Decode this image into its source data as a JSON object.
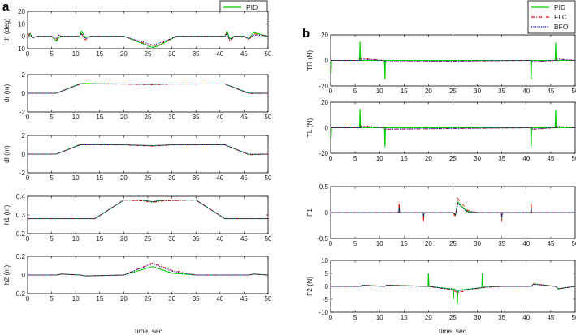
{
  "figure": {
    "panel_a_label": "a",
    "panel_b_label": "b",
    "xlabel_a": "time, sec",
    "xlabel_b": "time, sec"
  },
  "legend": [
    {
      "name": "PID",
      "color": "#00cc00",
      "dash": "solid"
    },
    {
      "name": "FLC",
      "color": "#ee0000",
      "dash": "dashdot"
    },
    {
      "name": "BFO",
      "color": "#0000cc",
      "dash": "dotted"
    }
  ],
  "chart_data": [
    {
      "id": "th",
      "panel": "a",
      "type": "line",
      "ylabel": "th (deg)",
      "xlim": [
        0,
        50
      ],
      "ylim": [
        -10,
        20
      ],
      "yticks": [
        -10,
        0,
        10,
        20
      ],
      "xticks": [
        0,
        5,
        10,
        15,
        20,
        25,
        30,
        35,
        40,
        45,
        50
      ],
      "series": [
        {
          "name": "PID",
          "x": [
            0,
            0.5,
            1,
            2,
            5,
            6,
            6.5,
            7,
            10,
            10.8,
            11.2,
            12,
            13,
            20,
            26,
            27,
            31,
            40,
            41,
            41.5,
            42,
            43,
            45,
            46,
            47,
            50
          ],
          "y": [
            0,
            2,
            -1,
            0,
            0,
            -4,
            -1,
            0,
            0,
            0,
            4,
            -1,
            0,
            0,
            -9,
            -8,
            0,
            0,
            0,
            4,
            -2,
            0,
            0,
            -2,
            3,
            0
          ]
        },
        {
          "name": "FLC",
          "x": [
            0,
            0.5,
            1,
            2,
            5,
            6,
            6.5,
            7,
            10,
            10.8,
            11.2,
            12,
            13,
            20,
            26,
            27,
            31,
            40,
            41,
            41.5,
            42,
            43,
            45,
            46,
            47,
            50
          ],
          "y": [
            0,
            3,
            -2,
            0,
            0,
            -3,
            1,
            0,
            0,
            0,
            2,
            -3,
            0,
            0,
            -8,
            -7,
            0,
            0,
            0,
            3,
            -4,
            0,
            0,
            -3,
            2,
            0
          ]
        },
        {
          "name": "BFO",
          "x": [
            0,
            0.5,
            1,
            2,
            5,
            6,
            6.5,
            7,
            10,
            10.8,
            11.2,
            12,
            13,
            20,
            26,
            27,
            31,
            40,
            41,
            41.5,
            42,
            43,
            45,
            46,
            47,
            50
          ],
          "y": [
            0,
            1,
            -1,
            0,
            0,
            -2,
            1,
            0,
            0,
            0,
            2,
            -2,
            0,
            0,
            -7,
            -6,
            0,
            0,
            0,
            2,
            -3,
            0,
            0,
            -2,
            1,
            0
          ]
        }
      ]
    },
    {
      "id": "dr",
      "panel": "a",
      "type": "line",
      "ylabel": "dr (m)",
      "xlim": [
        0,
        50
      ],
      "ylim": [
        -2,
        2
      ],
      "yticks": [
        -2,
        0,
        2
      ],
      "xticks": [
        0,
        5,
        10,
        15,
        20,
        25,
        30,
        35,
        40,
        45,
        50
      ],
      "series": [
        {
          "name": "PID",
          "x": [
            0,
            6,
            11,
            20,
            26,
            30,
            41,
            46,
            50
          ],
          "y": [
            0,
            0,
            1.05,
            1.0,
            0.97,
            1.0,
            1.0,
            0.02,
            0
          ]
        },
        {
          "name": "FLC",
          "x": [
            0,
            6,
            11,
            20,
            26,
            30,
            41,
            46,
            50
          ],
          "y": [
            0,
            0,
            1.0,
            0.98,
            0.92,
            0.98,
            1.0,
            -0.04,
            0
          ]
        },
        {
          "name": "BFO",
          "x": [
            0,
            6,
            11,
            20,
            26,
            30,
            41,
            46,
            50
          ],
          "y": [
            0,
            0,
            1.0,
            1.0,
            0.95,
            1.0,
            1.0,
            0,
            0
          ]
        }
      ]
    },
    {
      "id": "dl",
      "panel": "a",
      "type": "line",
      "ylabel": "dl (m)",
      "xlim": [
        0,
        50
      ],
      "ylim": [
        -2,
        2
      ],
      "yticks": [
        -2,
        0,
        2
      ],
      "xticks": [
        0,
        5,
        10,
        15,
        20,
        25,
        30,
        35,
        40,
        45,
        50
      ],
      "series": [
        {
          "name": "PID",
          "x": [
            0,
            6,
            11,
            20,
            26,
            30,
            41,
            46,
            50
          ],
          "y": [
            0,
            0,
            1.05,
            1.0,
            0.9,
            1.0,
            1.0,
            -0.05,
            0
          ]
        },
        {
          "name": "FLC",
          "x": [
            0,
            6,
            11,
            20,
            26,
            30,
            41,
            46,
            50
          ],
          "y": [
            0,
            0,
            1.0,
            0.98,
            0.85,
            0.98,
            1.0,
            -0.08,
            0
          ]
        },
        {
          "name": "BFO",
          "x": [
            0,
            6,
            11,
            20,
            26,
            30,
            41,
            46,
            50
          ],
          "y": [
            0,
            0,
            1.0,
            1.0,
            0.92,
            1.0,
            1.0,
            0,
            0
          ]
        }
      ]
    },
    {
      "id": "h1",
      "panel": "a",
      "type": "line",
      "ylabel": "h1 (m)",
      "xlim": [
        0,
        50
      ],
      "ylim": [
        0.2,
        0.4
      ],
      "yticks": [
        0.2,
        0.3,
        0.4
      ],
      "xticks": [
        0,
        5,
        10,
        15,
        20,
        25,
        30,
        35,
        40,
        45,
        50
      ],
      "series": [
        {
          "name": "PID",
          "x": [
            0,
            14,
            20,
            24,
            26,
            28,
            35,
            41,
            50
          ],
          "y": [
            0.28,
            0.28,
            0.38,
            0.38,
            0.37,
            0.38,
            0.38,
            0.28,
            0.28
          ]
        },
        {
          "name": "FLC",
          "x": [
            0,
            14,
            20,
            24,
            26,
            28,
            35,
            41,
            50
          ],
          "y": [
            0.28,
            0.28,
            0.38,
            0.375,
            0.368,
            0.375,
            0.38,
            0.28,
            0.28
          ]
        },
        {
          "name": "BFO",
          "x": [
            0,
            14,
            20,
            24,
            26,
            28,
            35,
            41,
            50
          ],
          "y": [
            0.28,
            0.28,
            0.38,
            0.378,
            0.372,
            0.378,
            0.38,
            0.28,
            0.28
          ]
        }
      ]
    },
    {
      "id": "h2",
      "panel": "a",
      "type": "line",
      "ylabel": "h2 (m)",
      "xlim": [
        0,
        50
      ],
      "ylim": [
        -0.2,
        0.2
      ],
      "yticks": [
        -0.2,
        0,
        0.2
      ],
      "xticks": [
        0,
        5,
        10,
        15,
        20,
        25,
        30,
        35,
        40,
        45,
        50
      ],
      "series": [
        {
          "name": "PID",
          "x": [
            0,
            6,
            7,
            11,
            12,
            20,
            26,
            30,
            35,
            46,
            47,
            50
          ],
          "y": [
            0,
            0,
            0.01,
            0,
            -0.01,
            0,
            0.09,
            0.02,
            0,
            0,
            0.01,
            0
          ]
        },
        {
          "name": "FLC",
          "x": [
            0,
            6,
            7,
            11,
            12,
            20,
            26,
            30,
            35,
            46,
            47,
            50
          ],
          "y": [
            0,
            0,
            0.01,
            0,
            -0.01,
            0,
            0.13,
            0.05,
            0,
            0,
            0.01,
            0
          ]
        },
        {
          "name": "BFO",
          "x": [
            0,
            6,
            7,
            11,
            12,
            20,
            26,
            30,
            35,
            46,
            47,
            50
          ],
          "y": [
            0,
            0,
            0.01,
            0,
            -0.01,
            0,
            0.12,
            0.04,
            0,
            0,
            0.01,
            0
          ]
        }
      ]
    },
    {
      "id": "TR",
      "panel": "b",
      "type": "line",
      "ylabel": "TR (N)",
      "xlim": [
        0,
        50
      ],
      "ylim": [
        -20,
        20
      ],
      "yticks": [
        -20,
        0,
        20
      ],
      "xticks": [
        0,
        5,
        10,
        15,
        20,
        25,
        30,
        35,
        40,
        45,
        50
      ],
      "series": [
        {
          "name": "PID",
          "x": [
            0,
            0.1,
            0.2,
            5.9,
            6,
            6.1,
            11,
            11.1,
            11.2,
            40.9,
            41,
            41.1,
            45.9,
            46,
            46.1,
            50
          ],
          "y": [
            0,
            -10,
            0,
            0,
            15,
            0,
            0,
            -15,
            0,
            0,
            -15,
            0,
            0,
            14,
            0,
            0
          ]
        },
        {
          "name": "FLC",
          "x": [
            0,
            6,
            6.3,
            11,
            11.3,
            41,
            41.3,
            46,
            46.3,
            50
          ],
          "y": [
            0,
            0,
            1.5,
            0,
            -1.2,
            0,
            -1.2,
            0,
            1.2,
            0
          ]
        },
        {
          "name": "BFO",
          "x": [
            0,
            6,
            6.3,
            11,
            11.3,
            41,
            41.3,
            46,
            46.3,
            50
          ],
          "y": [
            0,
            0,
            1,
            0,
            -1,
            0,
            -1,
            0,
            1,
            0
          ]
        }
      ]
    },
    {
      "id": "TL",
      "panel": "b",
      "type": "line",
      "ylabel": "TL (N)",
      "xlim": [
        0,
        50
      ],
      "ylim": [
        -20,
        20
      ],
      "yticks": [
        -20,
        0,
        20
      ],
      "xticks": [
        0,
        5,
        10,
        15,
        20,
        25,
        30,
        35,
        40,
        45,
        50
      ],
      "series": [
        {
          "name": "PID",
          "x": [
            0,
            0.1,
            0.2,
            5.9,
            6,
            6.1,
            11,
            11.1,
            11.2,
            40.9,
            41,
            41.1,
            45.9,
            46,
            46.1,
            50
          ],
          "y": [
            0,
            -8,
            0,
            0,
            15,
            0,
            0,
            -15,
            0,
            0,
            -15,
            0,
            0,
            14,
            0,
            0
          ]
        },
        {
          "name": "FLC",
          "x": [
            0,
            6,
            6.3,
            11,
            11.3,
            41,
            41.3,
            46,
            46.3,
            50
          ],
          "y": [
            0,
            0,
            1.5,
            0,
            -1.2,
            0,
            -1.2,
            0,
            1.2,
            0
          ]
        },
        {
          "name": "BFO",
          "x": [
            0,
            6,
            6.3,
            11,
            11.3,
            41,
            41.3,
            46,
            46.3,
            50
          ],
          "y": [
            0,
            0,
            1,
            0,
            -1,
            0,
            -1,
            0,
            1,
            0
          ]
        }
      ]
    },
    {
      "id": "F1",
      "panel": "b",
      "type": "line",
      "ylabel": "F1",
      "xlim": [
        0,
        50
      ],
      "ylim": [
        -0.5,
        0.5
      ],
      "yticks": [
        -0.5,
        0,
        0.5
      ],
      "xticks": [
        0,
        5,
        10,
        15,
        20,
        25,
        30,
        35,
        40,
        45,
        50
      ],
      "series": [
        {
          "name": "PID",
          "x": [
            0,
            13.9,
            14,
            14.1,
            18.9,
            19,
            19.1,
            25,
            25.5,
            26,
            27,
            28,
            30,
            34.9,
            35,
            35.1,
            40.9,
            41,
            41.1,
            50
          ],
          "y": [
            0,
            0,
            0.15,
            0,
            0,
            -0.1,
            0,
            0,
            -0.05,
            0.2,
            0.1,
            0.02,
            0,
            0,
            -0.12,
            0,
            0,
            0.12,
            0,
            0
          ]
        },
        {
          "name": "FLC",
          "x": [
            0,
            13.9,
            14,
            14.1,
            18.9,
            19,
            19.1,
            25,
            25.5,
            26,
            27,
            28,
            30,
            34.9,
            35,
            35.1,
            40.9,
            41,
            41.1,
            50
          ],
          "y": [
            0,
            0,
            0.2,
            0,
            0,
            -0.18,
            0,
            0,
            -0.08,
            0.27,
            0.15,
            0.04,
            0,
            0,
            -0.18,
            0,
            0,
            0.2,
            0,
            0
          ]
        },
        {
          "name": "BFO",
          "x": [
            0,
            13.9,
            14,
            14.1,
            18.9,
            19,
            19.1,
            25,
            25.5,
            26,
            27,
            28,
            30,
            34.9,
            35,
            35.1,
            40.9,
            41,
            41.1,
            50
          ],
          "y": [
            0,
            0,
            0.1,
            0,
            0,
            -0.08,
            0,
            0,
            -0.04,
            0.18,
            0.08,
            0.01,
            0,
            0,
            -0.1,
            0,
            0,
            0.1,
            0,
            0
          ]
        }
      ]
    },
    {
      "id": "F2",
      "panel": "b",
      "type": "line",
      "ylabel": "F2 (N)",
      "xlim": [
        0,
        50
      ],
      "ylim": [
        -10,
        10
      ],
      "yticks": [
        -10,
        -5,
        0,
        5,
        10
      ],
      "xticks": [
        0,
        5,
        10,
        15,
        20,
        25,
        30,
        35,
        40,
        45,
        50
      ],
      "series": [
        {
          "name": "PID",
          "x": [
            0,
            6,
            6.5,
            11,
            11.5,
            19.9,
            20,
            20.1,
            25,
            25.1,
            25.2,
            25.8,
            25.9,
            26,
            30.9,
            31,
            31.1,
            41,
            41.5,
            46,
            46.5,
            50
          ],
          "y": [
            0,
            0,
            0.5,
            0,
            0.5,
            0,
            5,
            0,
            -1,
            -5,
            -1,
            -1.5,
            -7,
            -1.5,
            -0.5,
            5,
            0,
            0,
            1,
            0,
            -1,
            0
          ]
        },
        {
          "name": "FLC",
          "x": [
            0,
            6,
            6.5,
            11,
            11.5,
            20,
            25,
            26,
            28,
            31,
            35,
            41,
            41.5,
            46,
            46.5,
            50
          ],
          "y": [
            0,
            0,
            0.5,
            0,
            0.5,
            0,
            -1.5,
            -2.5,
            -1.5,
            -0.5,
            0,
            0,
            1,
            0,
            -1,
            0
          ]
        },
        {
          "name": "BFO",
          "x": [
            0,
            6,
            6.5,
            11,
            11.5,
            20,
            25,
            26,
            28,
            31,
            35,
            41,
            41.5,
            46,
            46.5,
            50
          ],
          "y": [
            0,
            0,
            0.4,
            0,
            0.4,
            0,
            -1.2,
            -2,
            -1.2,
            -0.4,
            0,
            0,
            0.8,
            0,
            -0.8,
            0
          ]
        }
      ]
    }
  ]
}
